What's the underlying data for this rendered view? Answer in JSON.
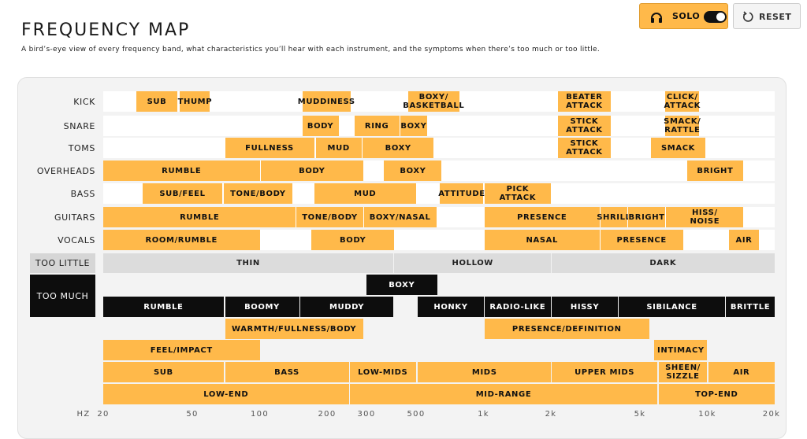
{
  "header": {
    "title": "FREQUENCY MAP",
    "subtitle": "A bird’s-eye view of every frequency band, what characteristics you’ll hear with each instrument, and the symptoms when there’s too much or too little."
  },
  "toolbar": {
    "solo_label": "SOLO",
    "solo_on": true,
    "reset_label": "RESET"
  },
  "colors": {
    "accent": "#ffb94a",
    "black": "#0d0d0d",
    "grey": "#dcdcdc",
    "highlight": "#e0221f"
  },
  "axis": {
    "prefix": "HZ",
    "ticks": [
      {
        "f": 20,
        "label": "20"
      },
      {
        "f": 50,
        "label": "50"
      },
      {
        "f": 100,
        "label": "100"
      },
      {
        "f": 200,
        "label": "200"
      },
      {
        "f": 300,
        "label": "300"
      },
      {
        "f": 500,
        "label": "500"
      },
      {
        "f": 1000,
        "label": "1k"
      },
      {
        "f": 2000,
        "label": "2k"
      },
      {
        "f": 5000,
        "label": "5k"
      },
      {
        "f": 10000,
        "label": "10k"
      },
      {
        "f": 20000,
        "label": "20k"
      }
    ]
  },
  "rows": [
    {
      "id": "kick",
      "label": "KICK",
      "bands": [
        {
          "text": "SUB",
          "from": 28,
          "to": 43
        },
        {
          "text": "THUMP",
          "from": 44,
          "to": 60
        },
        {
          "text": "MUDDINESS",
          "from": 155,
          "to": 255
        },
        {
          "text": "BOXY/\nBASKETBALL",
          "from": 460,
          "to": 780
        },
        {
          "text": "BEATER\nATTACK",
          "from": 2150,
          "to": 3700
        },
        {
          "text": "CLICK/\nATTACK",
          "from": 6500,
          "to": 9200
        }
      ]
    },
    {
      "id": "snare",
      "label": "SNARE",
      "bands": [
        {
          "text": "BODY",
          "from": 155,
          "to": 225
        },
        {
          "text": "RING",
          "from": 265,
          "to": 420
        },
        {
          "text": "BOXY",
          "from": 425,
          "to": 560
        },
        {
          "text": "STICK\nATTACK",
          "from": 2150,
          "to": 3700
        },
        {
          "text": "SMACK/\nRATTLE",
          "from": 6500,
          "to": 9200
        }
      ]
    },
    {
      "id": "toms",
      "label": "TOMS",
      "bands": [
        {
          "text": "FULLNESS",
          "from": 70,
          "to": 175
        },
        {
          "text": "MUD",
          "from": 178,
          "to": 285
        },
        {
          "text": "BOXY",
          "from": 288,
          "to": 600
        },
        {
          "text": "STICK\nATTACK",
          "from": 2150,
          "to": 3700
        },
        {
          "text": "SMACK",
          "from": 5600,
          "to": 9800
        }
      ]
    },
    {
      "id": "overheads",
      "label": "OVERHEADS",
      "bands": [
        {
          "text": "RUMBLE",
          "from": 20,
          "to": 100
        },
        {
          "text": "BODY",
          "from": 101,
          "to": 290
        },
        {
          "text": "BOXY",
          "from": 360,
          "to": 650
        },
        {
          "text": "BRIGHT",
          "from": 8100,
          "to": 14500
        }
      ]
    },
    {
      "id": "bass",
      "label": "BASS",
      "bands": [
        {
          "text": "SUB/FEEL",
          "from": 30,
          "to": 68
        },
        {
          "text": "TONE/BODY",
          "from": 69,
          "to": 140
        },
        {
          "text": "MUD",
          "from": 175,
          "to": 500
        },
        {
          "text": "ATTITUDE",
          "from": 640,
          "to": 1000
        },
        {
          "text": "PICK\nATTACK",
          "from": 1010,
          "to": 2000
        }
      ]
    },
    {
      "id": "guitars",
      "label": "GUITARS",
      "bands": [
        {
          "text": "RUMBLE",
          "from": 20,
          "to": 145
        },
        {
          "text": "TONE/BODY",
          "from": 146,
          "to": 290
        },
        {
          "text": "BOXY/NASAL",
          "from": 292,
          "to": 615
        },
        {
          "text": "PRESENCE",
          "from": 1010,
          "to": 3300
        },
        {
          "text": "SHRILL",
          "from": 3320,
          "to": 4400
        },
        {
          "text": "BRIGHT",
          "from": 4420,
          "to": 6500
        },
        {
          "text": "HISS/\nNOISE",
          "from": 6550,
          "to": 14500
        }
      ]
    },
    {
      "id": "vocals",
      "label": "VOCALS",
      "bands": [
        {
          "text": "ROOM/RUMBLE",
          "from": 20,
          "to": 100
        },
        {
          "text": "BODY",
          "from": 170,
          "to": 400
        },
        {
          "text": "NASAL",
          "from": 1010,
          "to": 3300
        },
        {
          "text": "PRESENCE",
          "from": 3320,
          "to": 7800
        },
        {
          "text": "AIR",
          "from": 12500,
          "to": 17000
        }
      ]
    }
  ],
  "too_little": {
    "label": "TOO LITTLE",
    "bands": [
      {
        "text": "THIN",
        "from": 20,
        "to": 395
      },
      {
        "text": "HOLLOW",
        "from": 400,
        "to": 2000
      },
      {
        "text": "DARK",
        "from": 2010,
        "to": 20000
      }
    ]
  },
  "too_much": {
    "label": "TOO MUCH",
    "rows": [
      [
        {
          "text": "BOXY",
          "from": 300,
          "to": 620
        }
      ],
      [
        {
          "text": "RUMBLE",
          "from": 20,
          "to": 69
        },
        {
          "text": "BOOMY",
          "from": 70,
          "to": 150
        },
        {
          "text": "MUDDY",
          "from": 152,
          "to": 395
        },
        {
          "text": "HONKY",
          "from": 510,
          "to": 1000
        },
        {
          "text": "RADIO-LIKE",
          "from": 1010,
          "to": 2000
        },
        {
          "text": "HISSY",
          "from": 2010,
          "to": 4000
        },
        {
          "text": "SIBILANCE",
          "from": 4020,
          "to": 12000
        },
        {
          "text": "BRITTLE",
          "from": 12100,
          "to": 20000
        }
      ]
    ]
  },
  "ranges": [
    [
      {
        "text": "WARMTH/FULLNESS/BODY",
        "from": 70,
        "to": 290
      },
      {
        "text": "PRESENCE/DEFINITION",
        "from": 1010,
        "to": 5500
      }
    ],
    [
      {
        "text": "FEEL/IMPACT",
        "from": 20,
        "to": 100
      },
      {
        "text": "INTIMACY",
        "from": 5800,
        "to": 10000
      }
    ],
    [
      {
        "text": "SUB",
        "from": 20,
        "to": 69
      },
      {
        "text": "BASS",
        "from": 70,
        "to": 250
      },
      {
        "text": "LOW-MIDS",
        "from": 252,
        "to": 500
      },
      {
        "text": "MIDS",
        "from": 510,
        "to": 2000
      },
      {
        "text": "UPPER MIDS",
        "from": 2010,
        "to": 6000
      },
      {
        "text": "SHEEN/\nSIZZLE",
        "from": 6050,
        "to": 10000
      },
      {
        "text": "AIR",
        "from": 10100,
        "to": 20000
      }
    ],
    [
      {
        "text": "LOW-END",
        "from": 20,
        "to": 250
      },
      {
        "text": "MID-RANGE",
        "from": 252,
        "to": 6000
      },
      {
        "text": "TOP-END",
        "from": 6050,
        "to": 20000
      }
    ]
  ]
}
